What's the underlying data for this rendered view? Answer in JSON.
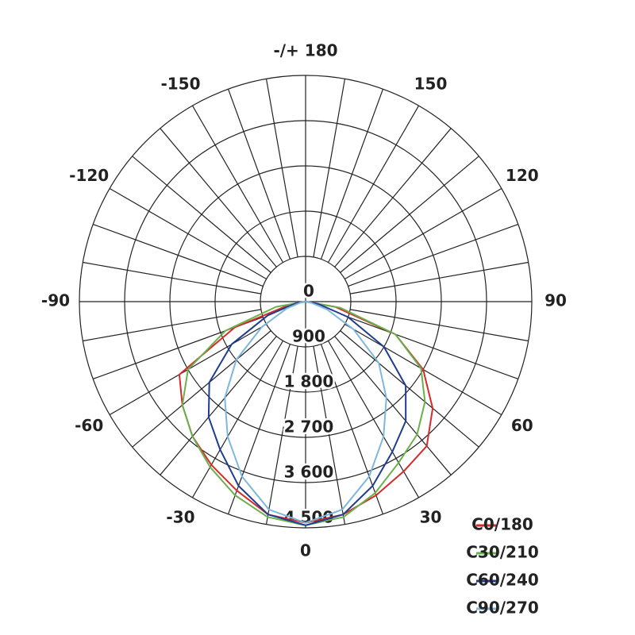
{
  "chart_data": {
    "type": "polar",
    "x": [
      -90,
      -80,
      -70,
      -60,
      -50,
      -40,
      -30,
      -20,
      -10,
      0,
      10,
      20,
      30,
      40,
      50,
      60,
      70,
      80,
      90
    ],
    "series": [
      {
        "name": "C0/180",
        "color": "#d62b2b",
        "values": [
          0,
          300,
          1500,
          2900,
          3200,
          3500,
          3750,
          4000,
          4300,
          4400,
          4300,
          4100,
          3900,
          3750,
          3300,
          2700,
          1900,
          600,
          0
        ]
      },
      {
        "name": "C30/210",
        "color": "#6ab04c",
        "values": [
          0,
          600,
          1700,
          2700,
          3200,
          3500,
          3800,
          4100,
          4350,
          4450,
          4350,
          4050,
          3700,
          3450,
          3100,
          2650,
          1900,
          700,
          0
        ]
      },
      {
        "name": "C60/240",
        "color": "#1f3c8f",
        "values": [
          0,
          200,
          800,
          1700,
          2500,
          3000,
          3400,
          3900,
          4300,
          4450,
          4300,
          3900,
          3450,
          3100,
          2600,
          1800,
          900,
          250,
          0
        ]
      },
      {
        "name": "C90/270",
        "color": "#7db7dc",
        "values": [
          0,
          100,
          400,
          1000,
          1800,
          2500,
          3100,
          3700,
          4200,
          4400,
          4200,
          3700,
          3100,
          2500,
          1900,
          1100,
          450,
          100,
          0
        ]
      }
    ],
    "xticks": [
      0,
      30,
      60,
      90,
      120,
      150,
      {
        "value": 180,
        "label": "-/+ 180"
      },
      -150,
      -120,
      -90,
      -60,
      -30
    ],
    "ylim": [
      0,
      4500
    ],
    "yticks": [
      0,
      900,
      {
        "value": 1800,
        "label": "1 800"
      },
      {
        "value": 2700,
        "label": "2 700"
      },
      {
        "value": 3600,
        "label": "3 600"
      },
      {
        "value": 4500,
        "label": "4 500"
      }
    ]
  }
}
